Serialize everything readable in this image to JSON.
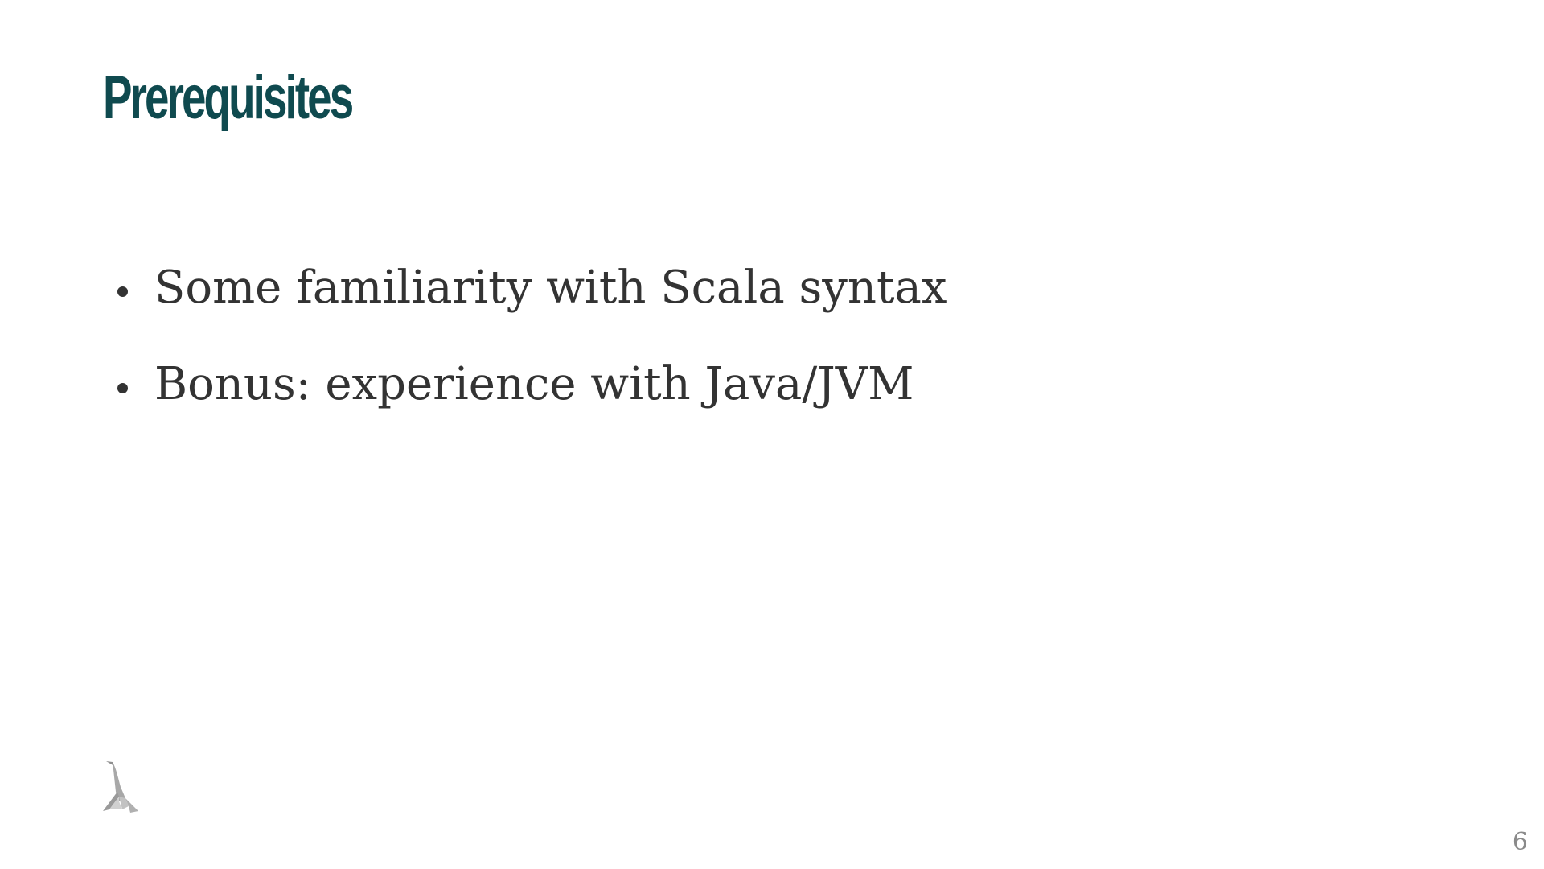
{
  "slide": {
    "title": "Prerequisites",
    "bullets": [
      "Some familiarity with Scala syntax",
      "Bonus: experience with Java/JVM"
    ],
    "page_number": "6",
    "logo_icon": "lambda-logo-icon"
  },
  "colors": {
    "title": "#0f4a4f",
    "body_text": "#333333",
    "page_number": "#8a8a8a",
    "background": "#ffffff"
  }
}
